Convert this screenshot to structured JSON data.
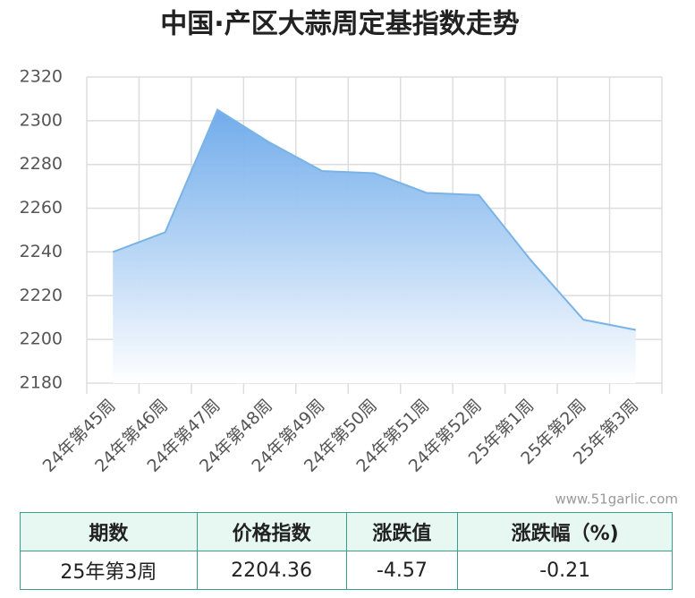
{
  "chart_data": {
    "type": "area",
    "title": "中国·产区大蒜周定基指数走势",
    "categories": [
      "24年第45周",
      "24年第46周",
      "24年第47周",
      "24年第48周",
      "24年第49周",
      "24年第50周",
      "24年第51周",
      "24年第52周",
      "25年第1周",
      "25年第2周",
      "25年第3周"
    ],
    "values": [
      2240,
      2249,
      2305,
      2290,
      2277,
      2276,
      2267,
      2266,
      2236,
      2209,
      2204.36
    ],
    "color": "#7ab3e6",
    "ylim": [
      2180,
      2320
    ],
    "yticks": [
      2180,
      2200,
      2220,
      2240,
      2260,
      2280,
      2300,
      2320
    ],
    "grid": true
  },
  "watermark": "www.51garlic.com",
  "table": {
    "header": [
      "期数",
      "价格指数",
      "涨跌值",
      "涨跌幅（%)"
    ],
    "rows": [
      [
        "25年第3周",
        "2204.36",
        "-4.57",
        "-0.21"
      ]
    ]
  }
}
